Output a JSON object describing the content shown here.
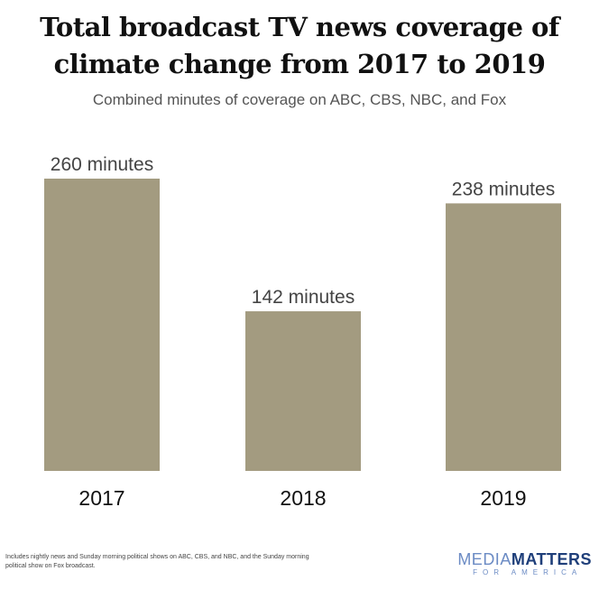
{
  "chart_data": {
    "type": "bar",
    "title": "Total broadcast TV news coverage of climate change from 2017 to 2019",
    "subtitle": "Combined minutes of coverage on ABC, CBS, NBC, and Fox",
    "categories": [
      "2017",
      "2018",
      "2019"
    ],
    "values": [
      260,
      142,
      238
    ],
    "data_labels": [
      "260 minutes",
      "142 minutes",
      "238 minutes"
    ],
    "xlabel": "",
    "ylabel": "",
    "ylim": [
      0,
      260
    ],
    "grid": false,
    "bar_color": "#a39b80"
  },
  "footnote": "Includes nightly news and Sunday morning political shows on ABC, CBS, and NBC, and the Sunday morning political show on Fox broadcast.",
  "logo": {
    "part1": "MEDIA",
    "part2": "MATTERS",
    "tagline": "FOR AMERICA",
    "colors": {
      "light": "#6b8bc4",
      "dark": "#1f3f7a"
    }
  }
}
